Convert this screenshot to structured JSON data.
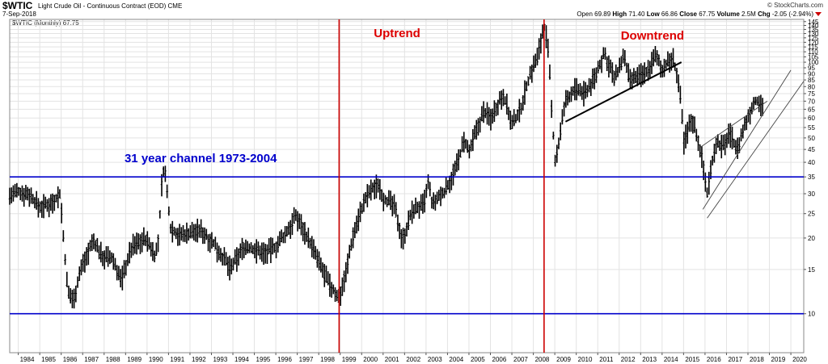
{
  "header": {
    "symbol": "$WTIC",
    "description": "Light Crude Oil - Continuous Contract (EOD)",
    "exchange": "CME",
    "date": "7-Sep-2018",
    "brand": "© StockCharts.com",
    "open_label": "Open",
    "open": "69.89",
    "high_label": "High",
    "high": "71.40",
    "low_label": "Low",
    "low": "66.86",
    "close_label": "Close",
    "close": "67.75",
    "volume_label": "Volume",
    "volume": "2.5M",
    "chg_label": "Chg",
    "chg": "-2.05 (-2.94%)"
  },
  "legend": "$WTIC (Monthly) 67.75",
  "colors": {
    "price": "#000000",
    "channel": "#0000cc",
    "divider": "#cc0000",
    "annotation_red": "#dd0000",
    "annotation_blue": "#0000cc",
    "grid": "#e3e3e3"
  },
  "chart_data": {
    "type": "ohlc-bar",
    "title": "$WTIC (Monthly)",
    "x_range": [
      1983.6,
      2020.6
    ],
    "y_range": [
      7,
      148
    ],
    "y_scale": "log",
    "y_ticks": [
      10,
      15,
      20,
      25,
      30,
      35,
      40,
      45,
      50,
      55,
      60,
      65,
      70,
      75,
      80,
      85,
      90,
      95,
      100,
      105,
      110,
      115,
      120,
      125,
      130,
      135,
      140,
      145
    ],
    "x_ticks": [
      "1984",
      "1985",
      "1986",
      "1987",
      "1988",
      "1989",
      "1990",
      "1991",
      "1992",
      "1993",
      "1994",
      "1995",
      "1996",
      "1997",
      "1998",
      "1999",
      "2000",
      "2001",
      "2002",
      "2003",
      "2004",
      "2005",
      "2006",
      "2007",
      "2008",
      "2009",
      "2010",
      "2011",
      "2012",
      "2013",
      "2014",
      "2015",
      "2016",
      "2017",
      "2018",
      "2019",
      "2020"
    ],
    "price_path": [
      [
        1983.6,
        29.5
      ],
      [
        1984.0,
        30.5
      ],
      [
        1984.5,
        30
      ],
      [
        1985.0,
        26.5
      ],
      [
        1985.5,
        27.5
      ],
      [
        1985.95,
        30
      ],
      [
        1986.1,
        20
      ],
      [
        1986.3,
        12
      ],
      [
        1986.6,
        11.5
      ],
      [
        1986.9,
        15
      ],
      [
        1987.5,
        19.5
      ],
      [
        1987.9,
        17
      ],
      [
        1988.4,
        16.5
      ],
      [
        1988.8,
        13.5
      ],
      [
        1989.3,
        18.5
      ],
      [
        1989.9,
        20
      ],
      [
        1990.4,
        17
      ],
      [
        1990.55,
        20
      ],
      [
        1990.7,
        34
      ],
      [
        1990.8,
        39
      ],
      [
        1990.95,
        29
      ],
      [
        1991.1,
        22
      ],
      [
        1991.5,
        20.5
      ],
      [
        1991.9,
        21
      ],
      [
        1992.5,
        21.5
      ],
      [
        1993.0,
        19.5
      ],
      [
        1993.9,
        15
      ],
      [
        1994.5,
        18.5
      ],
      [
        1995.0,
        18
      ],
      [
        1995.5,
        17.5
      ],
      [
        1996.0,
        18.5
      ],
      [
        1996.5,
        21
      ],
      [
        1996.95,
        24.5
      ],
      [
        1997.5,
        20
      ],
      [
        1998.0,
        16
      ],
      [
        1998.5,
        13
      ],
      [
        1998.95,
        11.5
      ],
      [
        1999.3,
        15
      ],
      [
        1999.6,
        20.5
      ],
      [
        1999.95,
        25.5
      ],
      [
        2000.3,
        30
      ],
      [
        2000.8,
        33
      ],
      [
        2001.0,
        29
      ],
      [
        2001.5,
        27
      ],
      [
        2001.9,
        19.5
      ],
      [
        2002.4,
        26
      ],
      [
        2002.9,
        27
      ],
      [
        2003.1,
        33
      ],
      [
        2003.3,
        27
      ],
      [
        2003.9,
        31
      ],
      [
        2004.4,
        38
      ],
      [
        2004.8,
        49
      ],
      [
        2005.0,
        43
      ],
      [
        2005.7,
        64
      ],
      [
        2006.0,
        60
      ],
      [
        2006.6,
        75
      ],
      [
        2007.0,
        56
      ],
      [
        2007.4,
        65
      ],
      [
        2007.9,
        92
      ],
      [
        2008.2,
        105
      ],
      [
        2008.5,
        140
      ],
      [
        2008.65,
        120
      ],
      [
        2008.85,
        65
      ],
      [
        2009.0,
        40
      ],
      [
        2009.2,
        48
      ],
      [
        2009.5,
        70
      ],
      [
        2009.9,
        78
      ],
      [
        2010.4,
        75
      ],
      [
        2010.9,
        88
      ],
      [
        2011.3,
        108
      ],
      [
        2011.8,
        85
      ],
      [
        2012.2,
        105
      ],
      [
        2012.5,
        84
      ],
      [
        2012.9,
        88
      ],
      [
        2013.3,
        92
      ],
      [
        2013.7,
        106
      ],
      [
        2014.0,
        94
      ],
      [
        2014.5,
        104
      ],
      [
        2014.8,
        80
      ],
      [
        2015.0,
        48
      ],
      [
        2015.4,
        60
      ],
      [
        2015.8,
        44
      ],
      [
        2016.1,
        30
      ],
      [
        2016.5,
        48
      ],
      [
        2016.9,
        46
      ],
      [
        2017.1,
        53
      ],
      [
        2017.5,
        45
      ],
      [
        2017.9,
        57
      ],
      [
        2018.1,
        64
      ],
      [
        2018.4,
        71
      ],
      [
        2018.7,
        68
      ]
    ],
    "channel_lines": [
      10,
      35
    ],
    "divider_years": [
      1998.95,
      2008.5
    ],
    "trendlines": [
      [
        [
          2009.5,
          58
        ],
        [
          2014.9,
          100
        ]
      ],
      [
        [
          2015.9,
          26
        ],
        [
          2020.0,
          93
        ]
      ],
      [
        [
          2016.1,
          24
        ],
        [
          2020.6,
          84
        ]
      ],
      [
        [
          2015.8,
          46
        ],
        [
          2018.9,
          70
        ]
      ]
    ],
    "annotations": [
      {
        "text": "Uptrend",
        "x": 2001.65,
        "y": 126,
        "color": "#dd0000"
      },
      {
        "text": "Downtrend",
        "x": 2013.55,
        "y": 123,
        "color": "#dd0000"
      },
      {
        "text": "31 year channel 1973-2004",
        "x": 1992.5,
        "y": 40,
        "color": "#0000cc"
      }
    ]
  }
}
